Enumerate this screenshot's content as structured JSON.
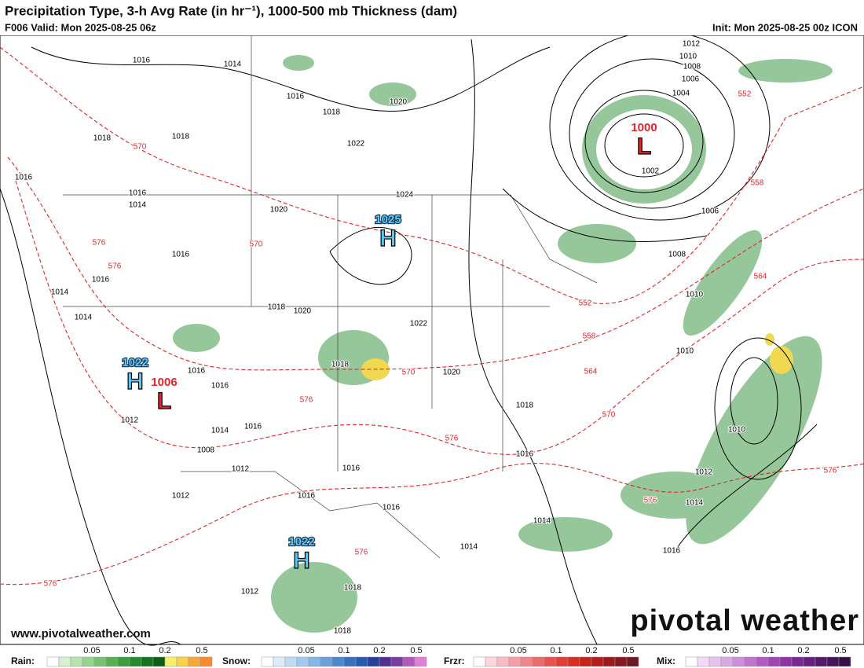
{
  "header": {
    "title": "Precipitation Type, 3-h Avg Rate (in hr⁻¹), 1000-500 mb Thickness (dam)",
    "valid": "F006 Valid: Mon 2025-08-25 06z",
    "init": "Init: Mon 2025-08-25 00z ICON"
  },
  "isobar_labels": [
    1016,
    1014,
    1016,
    1018,
    1020,
    1022,
    1018,
    1018,
    1016,
    1016,
    1014,
    1024,
    1020,
    1016,
    1016,
    1014,
    1014,
    1018,
    1020,
    1022,
    1018,
    1020,
    1016,
    1016,
    1012,
    1014,
    1016,
    1018,
    1008,
    1012,
    1016,
    1016,
    1016,
    1016,
    1012,
    1014,
    1014,
    1012,
    1018,
    1018,
    1012,
    1010,
    1008,
    1006,
    1004,
    1002,
    1006,
    1008,
    1010,
    1010,
    1010,
    1012,
    1014,
    1016
  ],
  "thickness_labels": [
    552,
    570,
    558,
    576,
    576,
    570,
    564,
    552,
    558,
    570,
    564,
    576,
    570,
    576,
    576,
    576,
    576,
    576
  ],
  "centers": [
    {
      "value": 1000,
      "type": "L"
    },
    {
      "value": 1025,
      "type": "H"
    },
    {
      "value": 1022,
      "type": "H"
    },
    {
      "value": 1006,
      "type": "L"
    },
    {
      "value": 1022,
      "type": "H"
    }
  ],
  "watermark": "www.pivotalweather.com",
  "logo": "pivotal weather",
  "legend": [
    {
      "label": "Rain:",
      "ticks": [
        0.05,
        0.1,
        0.2,
        0.5
      ],
      "colors": [
        "#ffffff",
        "#d8f0d0",
        "#b8e2b0",
        "#98d390",
        "#78c272",
        "#58b055",
        "#3c9e3e",
        "#258a2c",
        "#15741f",
        "#0e5e17",
        "#f5f06a",
        "#f9d24a",
        "#f7a83a",
        "#f58a2e"
      ]
    },
    {
      "label": "Snow:",
      "ticks": [
        0.05,
        0.1,
        0.2,
        0.5
      ],
      "colors": [
        "#ffffff",
        "#dcecf8",
        "#bfdcf3",
        "#a2caee",
        "#84b6e6",
        "#6aa0dc",
        "#4e88cf",
        "#3870c0",
        "#2a5ab0",
        "#273f98",
        "#4f2f8f",
        "#7a3c9e",
        "#b25ab8",
        "#e27fd6"
      ]
    },
    {
      "label": "Frzr:",
      "ticks": [
        0.05,
        0.1,
        0.2,
        0.5
      ],
      "colors": [
        "#ffffff",
        "#fbd6dc",
        "#f8bcc4",
        "#f4a0a8",
        "#f0858a",
        "#ec6a6c",
        "#e8524f",
        "#e23e35",
        "#d72f22",
        "#c62418",
        "#b21d18",
        "#9c1a1d",
        "#861a22",
        "#6e1a26"
      ]
    },
    {
      "label": "Mix:",
      "ticks": [
        0.05,
        0.1,
        0.2,
        0.5
      ],
      "colors": [
        "#ffffff",
        "#f1dbf4",
        "#e6c2ec",
        "#daa8e3",
        "#ce8ed9",
        "#c174cf",
        "#b25ac3",
        "#a044b5",
        "#8e33a4",
        "#7a2792",
        "#671e7f",
        "#55196b",
        "#441558",
        "#331146"
      ]
    }
  ]
}
